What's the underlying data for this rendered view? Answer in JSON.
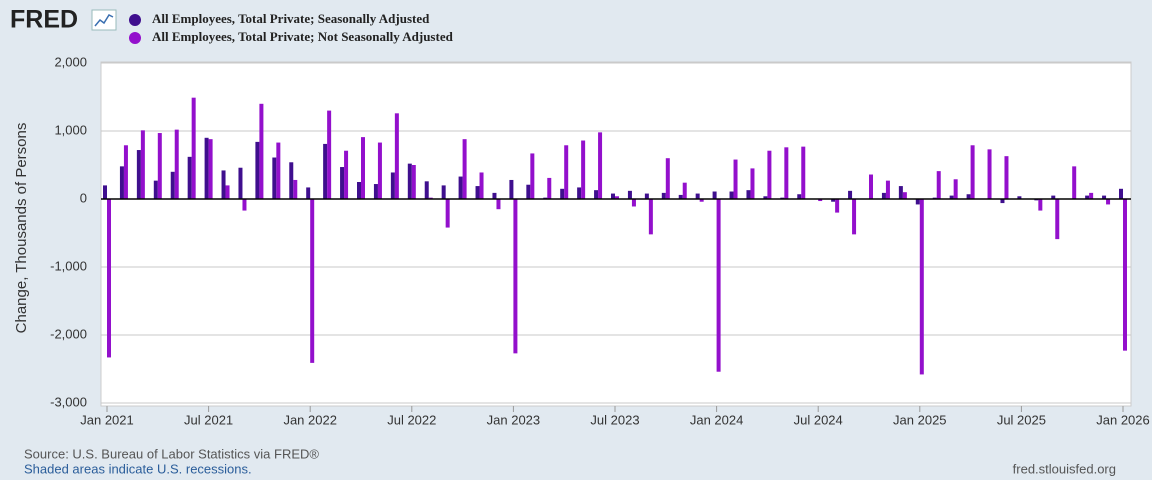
{
  "logo": "FRED",
  "source": "Source: U.S. Bureau of Labor Statistics via FRED®",
  "note": "Shaded areas indicate U.S. recessions.",
  "site": "fred.stlouisfed.org",
  "chart_data": {
    "type": "bar",
    "y_label": "Change, Thousands of Persons",
    "x": [
      "2021-01",
      "2021-02",
      "2021-03",
      "2021-04",
      "2021-05",
      "2021-06",
      "2021-07",
      "2021-08",
      "2021-09",
      "2021-10",
      "2021-11",
      "2021-12",
      "2022-01",
      "2022-02",
      "2022-03",
      "2022-04",
      "2022-05",
      "2022-06",
      "2022-07",
      "2022-08",
      "2022-09",
      "2022-10",
      "2022-11",
      "2022-12",
      "2023-01",
      "2023-02",
      "2023-03",
      "2023-04",
      "2023-05",
      "2023-06",
      "2023-07",
      "2023-08",
      "2023-09",
      "2023-10",
      "2023-11",
      "2023-12",
      "2024-01",
      "2024-02",
      "2024-03",
      "2024-04",
      "2024-05",
      "2024-06",
      "2024-07",
      "2024-08",
      "2024-09",
      "2024-10",
      "2024-11",
      "2024-12",
      "2025-01",
      "2025-02",
      "2025-03",
      "2025-04",
      "2025-05",
      "2025-06",
      "2025-07",
      "2025-08",
      "2025-09",
      "2025-10",
      "2025-11",
      "2025-12",
      "2026-01"
    ],
    "series": [
      {
        "name": "All Employees, Total Private; Seasonally Adjusted",
        "color": "#3f0f8e",
        "values": [
          200,
          480,
          720,
          270,
          400,
          620,
          900,
          420,
          460,
          840,
          610,
          540,
          170,
          810,
          470,
          250,
          220,
          390,
          520,
          260,
          200,
          330,
          190,
          90,
          280,
          210,
          20,
          150,
          170,
          130,
          80,
          120,
          80,
          90,
          60,
          80,
          110,
          110,
          130,
          40,
          20,
          70,
          0,
          -40,
          120,
          0,
          90,
          190,
          -80,
          20,
          50,
          70,
          0,
          -60,
          40,
          -20,
          50,
          0,
          50,
          50,
          150
        ]
      },
      {
        "name": "All Employees, Total Private; Not Seasonally Adjusted",
        "color": "#9310cc",
        "values": [
          -2330,
          790,
          1010,
          970,
          1020,
          1490,
          880,
          200,
          -170,
          1400,
          830,
          280,
          -2410,
          1300,
          710,
          910,
          830,
          1260,
          500,
          20,
          -420,
          880,
          390,
          -150,
          -2270,
          670,
          310,
          790,
          860,
          980,
          40,
          -110,
          -520,
          600,
          240,
          -40,
          -2540,
          580,
          450,
          710,
          760,
          770,
          -30,
          -200,
          -520,
          360,
          270,
          100,
          -2580,
          410,
          290,
          790,
          730,
          630,
          0,
          -170,
          -590,
          480,
          90,
          -80,
          -2230
        ]
      }
    ],
    "ylim": [
      -3000,
      2000
    ],
    "yticks": [
      {
        "value": -3000,
        "label": "-3,000"
      },
      {
        "value": -2000,
        "label": "-2,000"
      },
      {
        "value": -1000,
        "label": "-1,000"
      },
      0,
      {
        "value": 1000,
        "label": "1,000"
      },
      {
        "value": 2000,
        "label": "2,000"
      }
    ],
    "xlim": [
      "2021-01",
      "2026-01"
    ],
    "xticks": [
      {
        "value": "2021-01",
        "label": "Jan 2021"
      },
      {
        "value": "2021-07",
        "label": "Jul 2021"
      },
      {
        "value": "2022-01",
        "label": "Jan 2022"
      },
      {
        "value": "2022-07",
        "label": "Jul 2022"
      },
      {
        "value": "2023-01",
        "label": "Jan 2023"
      },
      {
        "value": "2023-07",
        "label": "Jul 2023"
      },
      {
        "value": "2024-01",
        "label": "Jan 2024"
      },
      {
        "value": "2024-07",
        "label": "Jul 2024"
      },
      {
        "value": "2025-01",
        "label": "Jan 2025"
      },
      {
        "value": "2025-07",
        "label": "Jul 2025"
      },
      {
        "value": "2026-01",
        "label": "Jan 2026"
      }
    ],
    "grid": true
  }
}
